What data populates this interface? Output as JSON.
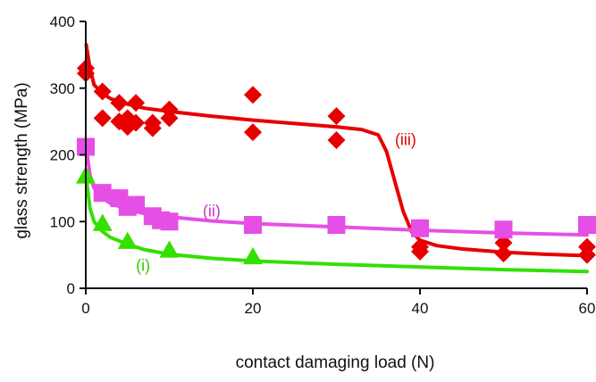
{
  "chart_data": {
    "type": "scatter",
    "title": "",
    "xlabel": "contact damaging load  (N)",
    "ylabel": "glass strength (MPa)",
    "xlim": [
      0,
      60
    ],
    "ylim": [
      0,
      400
    ],
    "x_ticks": [
      "0",
      "20",
      "40",
      "60"
    ],
    "y_ticks": [
      "0",
      "100",
      "200",
      "300",
      "400"
    ],
    "grid": false,
    "legend": "none",
    "series": [
      {
        "name": "(iii)",
        "color": "#e60000",
        "marker": "diamond",
        "points": [
          [
            0,
            330
          ],
          [
            0,
            322
          ],
          [
            2,
            295
          ],
          [
            2,
            255
          ],
          [
            4,
            278
          ],
          [
            4,
            250
          ],
          [
            5,
            242
          ],
          [
            5,
            255
          ],
          [
            6,
            278
          ],
          [
            6,
            248
          ],
          [
            8,
            240
          ],
          [
            8,
            248
          ],
          [
            10,
            268
          ],
          [
            10,
            255
          ],
          [
            20,
            290
          ],
          [
            20,
            234
          ],
          [
            30,
            258
          ],
          [
            30,
            222
          ],
          [
            40,
            62
          ],
          [
            40,
            55
          ],
          [
            50,
            68
          ],
          [
            50,
            52
          ],
          [
            60,
            62
          ],
          [
            60,
            50
          ]
        ],
        "fit": [
          [
            0.05,
            365
          ],
          [
            0.5,
            330
          ],
          [
            1,
            305
          ],
          [
            2,
            292
          ],
          [
            3,
            284
          ],
          [
            5,
            276
          ],
          [
            7,
            270
          ],
          [
            10,
            265
          ],
          [
            15,
            258
          ],
          [
            20,
            252
          ],
          [
            25,
            247
          ],
          [
            30,
            242
          ],
          [
            33,
            238
          ],
          [
            35,
            230
          ],
          [
            36,
            205
          ],
          [
            37,
            160
          ],
          [
            38,
            115
          ],
          [
            39,
            85
          ],
          [
            40,
            72
          ],
          [
            42,
            64
          ],
          [
            45,
            59
          ],
          [
            50,
            54
          ],
          [
            55,
            51
          ],
          [
            60,
            49
          ]
        ]
      },
      {
        "name": "(ii)",
        "color": "#e64fe6",
        "marker": "square",
        "points": [
          [
            0,
            212
          ],
          [
            2,
            143
          ],
          [
            4,
            135
          ],
          [
            5,
            122
          ],
          [
            6,
            125
          ],
          [
            8,
            108
          ],
          [
            9,
            102
          ],
          [
            10,
            100
          ],
          [
            20,
            95
          ],
          [
            30,
            95
          ],
          [
            40,
            90
          ],
          [
            50,
            88
          ],
          [
            60,
            95
          ]
        ],
        "fit": [
          [
            0.05,
            212
          ],
          [
            0.5,
            170
          ],
          [
            1,
            150
          ],
          [
            2,
            135
          ],
          [
            3,
            127
          ],
          [
            5,
            118
          ],
          [
            7,
            112
          ],
          [
            10,
            107
          ],
          [
            15,
            101
          ],
          [
            20,
            97
          ],
          [
            30,
            92
          ],
          [
            40,
            87
          ],
          [
            50,
            83
          ],
          [
            60,
            80
          ]
        ]
      },
      {
        "name": "(i)",
        "color": "#33e000",
        "marker": "triangle",
        "points": [
          [
            0,
            168
          ],
          [
            2,
            97
          ],
          [
            5,
            70
          ],
          [
            10,
            57
          ],
          [
            20,
            47
          ]
        ],
        "fit": [
          [
            0.05,
            165
          ],
          [
            0.5,
            120
          ],
          [
            1,
            100
          ],
          [
            2,
            85
          ],
          [
            3,
            76
          ],
          [
            5,
            66
          ],
          [
            7,
            58
          ],
          [
            10,
            51
          ],
          [
            15,
            45
          ],
          [
            20,
            41
          ],
          [
            30,
            36
          ],
          [
            40,
            32
          ],
          [
            50,
            28
          ],
          [
            60,
            25
          ]
        ]
      }
    ],
    "annotations": [
      {
        "text": "(iii)",
        "color": "#e60000",
        "x": 37,
        "y": 215
      },
      {
        "text": "(ii)",
        "color": "#cc33cc",
        "x": 14,
        "y": 108
      },
      {
        "text": "(i)",
        "color": "#33cc00",
        "x": 6,
        "y": 26
      }
    ]
  }
}
